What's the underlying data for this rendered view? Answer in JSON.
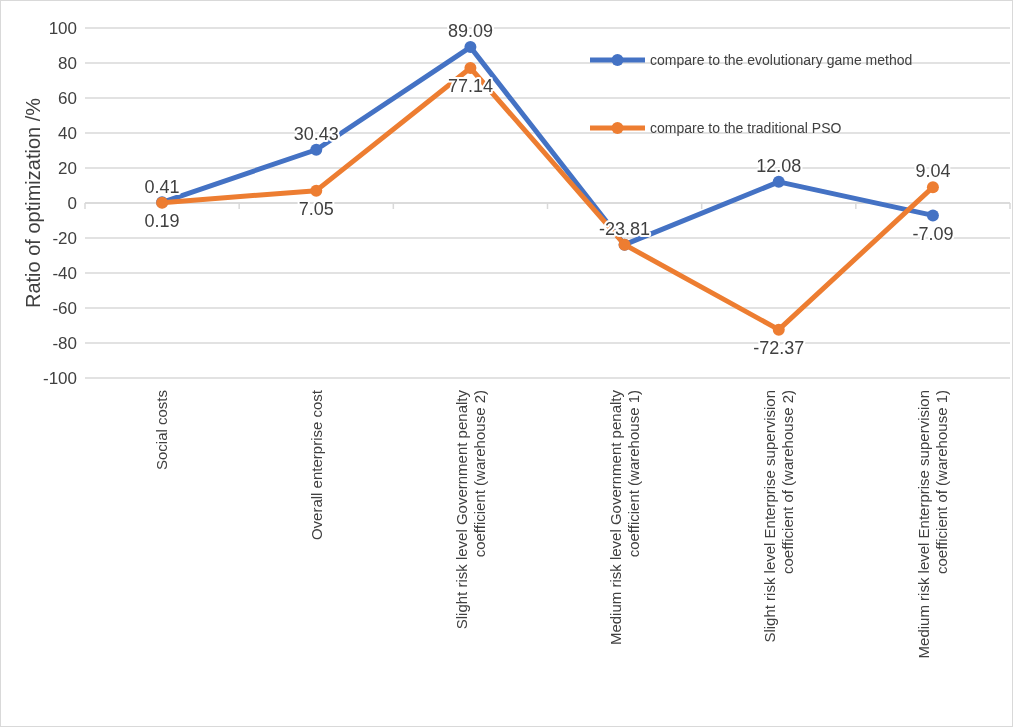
{
  "chart_data": {
    "type": "line",
    "ylabel": "Ratio of optimization /%",
    "categories": [
      "Social costs",
      "Overall enterprise cost",
      "Slight risk level Government penalty coefficient (warehouse 2)",
      "Medium risk level Government penalty coefficient (warehouse 1)",
      "Slight risk level Enterprise supervision coefficient of (warehouse 2)",
      "Medium risk level Enterprise supervision coefficient of (warehouse 1)"
    ],
    "series": [
      {
        "name": "compare to the evolutionary game method",
        "color": "#4472c4",
        "values": [
          0.41,
          30.43,
          89.09,
          -23.81,
          12.08,
          -7.09
        ]
      },
      {
        "name": "compare to the traditional PSO",
        "color": "#ed7d31",
        "values": [
          0.19,
          7.05,
          77.14,
          -23.81,
          -72.37,
          9.04
        ],
        "value_labels": [
          "0.19",
          "7.05",
          "77.14",
          null,
          "-72.37",
          "9.04"
        ]
      }
    ],
    "ylim": [
      -100,
      100
    ],
    "yticks": [
      -100,
      -80,
      -60,
      -40,
      -20,
      0,
      20,
      40,
      60,
      80,
      100
    ],
    "grid": "y",
    "legend": "top right",
    "marker": "circle",
    "line_style": "solid",
    "data_labels": true
  }
}
